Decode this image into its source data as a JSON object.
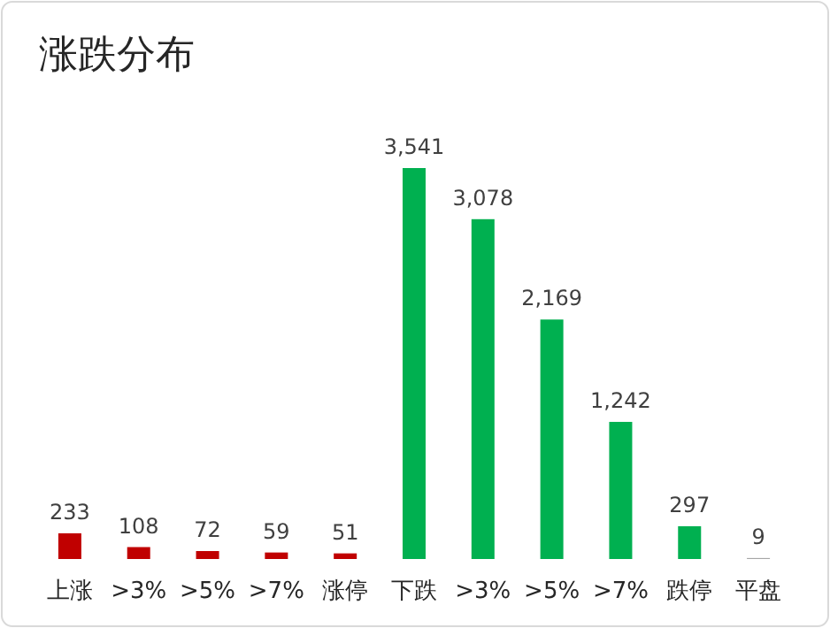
{
  "chart_data": {
    "type": "bar",
    "title": "涨跌分布",
    "categories": [
      "上涨",
      ">3%",
      ">5%",
      ">7%",
      "涨停",
      "下跌",
      ">3%",
      ">5%",
      ">7%",
      "跌停",
      "平盘"
    ],
    "values": [
      233,
      108,
      72,
      59,
      51,
      3541,
      3078,
      2169,
      1242,
      297,
      9
    ],
    "value_labels": [
      "233",
      "108",
      "72",
      "59",
      "51",
      "3,541",
      "3,078",
      "2,169",
      "1,242",
      "297",
      "9"
    ],
    "colors": [
      "#c00000",
      "#c00000",
      "#c00000",
      "#c00000",
      "#c00000",
      "#00b050",
      "#00b050",
      "#00b050",
      "#00b050",
      "#00b050",
      "#a6a6a6"
    ]
  }
}
